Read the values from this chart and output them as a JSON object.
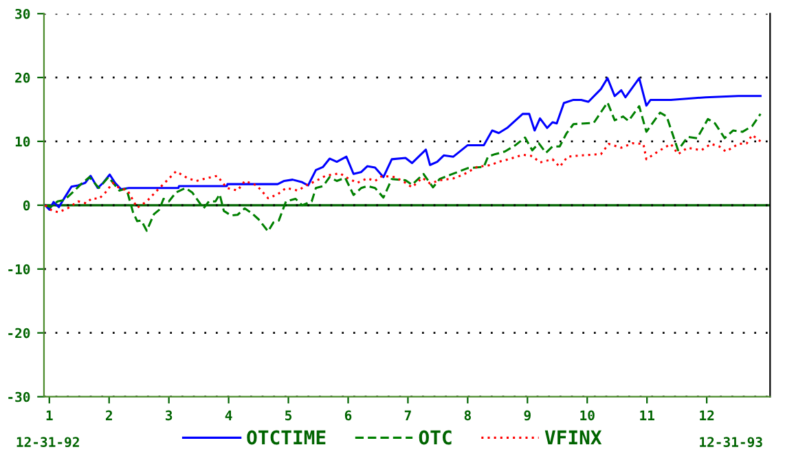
{
  "chart_data": {
    "type": "line",
    "xlim": [
      0.91,
      13.06
    ],
    "ylim": [
      -30,
      30
    ],
    "yticks": [
      {
        "value": -30,
        "label": "-30"
      },
      {
        "value": -20,
        "label": "-20"
      },
      {
        "value": -10,
        "label": "-10"
      },
      0,
      10,
      20,
      30
    ],
    "xticks": [
      1,
      2,
      3,
      4,
      5,
      6,
      7,
      8,
      9,
      10,
      11,
      12
    ],
    "grid": "y",
    "legend": "bottom",
    "ref_lines": [
      {
        "axis": "y",
        "value": 0,
        "color": "#006400",
        "line_style": "solid"
      }
    ],
    "annotations": [
      "12-31-92",
      "12-31-93"
    ],
    "series": [
      {
        "name": "OTCTIME",
        "color": "#0000ff",
        "line_style": "solid",
        "x": [
          0.93,
          1.0,
          1.07,
          1.16,
          1.23,
          1.37,
          1.48,
          1.6,
          1.69,
          1.81,
          1.9,
          2.01,
          2.1,
          2.2,
          2.33,
          3.16,
          3.17,
          3.97,
          3.98,
          4.82,
          4.93,
          5.07,
          5.23,
          5.33,
          5.46,
          5.58,
          5.69,
          5.81,
          5.97,
          6.09,
          6.22,
          6.32,
          6.45,
          6.59,
          6.73,
          6.96,
          7.07,
          7.3,
          7.37,
          7.49,
          7.6,
          7.76,
          8.0,
          8.27,
          8.41,
          8.52,
          8.66,
          8.92,
          9.03,
          9.12,
          9.21,
          9.33,
          9.42,
          9.49,
          9.61,
          9.77,
          9.9,
          10.02,
          10.23,
          10.34,
          10.46,
          10.57,
          10.64,
          10.87,
          10.99,
          11.06,
          11.4,
          11.98,
          12.53,
          12.9
        ],
        "values": [
          0,
          -0.7,
          0.5,
          -0.3,
          0.8,
          2.9,
          3.1,
          3.5,
          4.6,
          2.7,
          3.5,
          4.8,
          3.5,
          2.5,
          2.7,
          2.7,
          3.0,
          3.0,
          3.3,
          3.3,
          3.8,
          4.0,
          3.6,
          3.1,
          5.5,
          6.0,
          7.3,
          6.8,
          7.6,
          4.9,
          5.2,
          6.1,
          5.9,
          4.4,
          7.2,
          7.4,
          6.6,
          8.7,
          6.3,
          6.8,
          7.8,
          7.6,
          9.4,
          9.4,
          11.7,
          11.3,
          12.1,
          14.3,
          14.3,
          11.7,
          13.6,
          12.1,
          13.0,
          12.8,
          16.0,
          16.5,
          16.5,
          16.2,
          18.2,
          19.9,
          17.1,
          18.0,
          16.9,
          19.9,
          15.6,
          16.5,
          16.5,
          16.9,
          17.1,
          17.1
        ]
      },
      {
        "name": "OTC",
        "color": "#008000",
        "line_style": "dashed",
        "x": [
          0.93,
          1.02,
          1.14,
          1.25,
          1.39,
          1.53,
          1.67,
          1.83,
          1.99,
          2.17,
          2.29,
          2.4,
          2.47,
          2.54,
          2.63,
          2.75,
          2.84,
          2.91,
          3.0,
          3.12,
          3.28,
          3.39,
          3.58,
          3.67,
          3.78,
          3.85,
          3.92,
          4.04,
          4.15,
          4.27,
          4.38,
          4.5,
          4.66,
          4.75,
          4.84,
          4.96,
          5.12,
          5.23,
          5.39,
          5.46,
          5.58,
          5.69,
          5.81,
          5.95,
          6.09,
          6.22,
          6.32,
          6.45,
          6.59,
          6.73,
          6.96,
          7.07,
          7.26,
          7.42,
          7.53,
          7.72,
          8.0,
          8.27,
          8.34,
          8.46,
          8.62,
          8.8,
          8.96,
          9.08,
          9.19,
          9.31,
          9.42,
          9.54,
          9.65,
          9.77,
          10.11,
          10.34,
          10.46,
          10.6,
          10.69,
          10.87,
          10.99,
          11.22,
          11.33,
          11.52,
          11.68,
          11.84,
          12.02,
          12.14,
          12.3,
          12.44,
          12.6,
          12.76,
          12.9
        ],
        "values": [
          0,
          -0.3,
          0.6,
          0.8,
          2.0,
          3.3,
          4.4,
          2.7,
          4.4,
          2.3,
          2.6,
          -1.1,
          -2.5,
          -2.4,
          -4.0,
          -1.4,
          -0.7,
          1.0,
          0.6,
          2.0,
          2.7,
          2.0,
          -0.5,
          0.6,
          0.6,
          1.7,
          -0.9,
          -1.6,
          -1.5,
          -0.5,
          -1.2,
          -2.2,
          -4.1,
          -2.7,
          -2.4,
          0.6,
          1.0,
          0,
          0.6,
          2.7,
          3.0,
          4.4,
          3.8,
          4.3,
          1.6,
          2.7,
          3.0,
          2.7,
          1.2,
          4.1,
          3.9,
          3.2,
          4.9,
          2.8,
          4.1,
          4.8,
          5.8,
          6.0,
          7.6,
          8.0,
          8.4,
          9.4,
          10.6,
          8.6,
          9.7,
          8.2,
          9.2,
          9.2,
          11.2,
          12.7,
          12.9,
          16.1,
          13.3,
          13.9,
          13.2,
          15.5,
          11.5,
          14.5,
          13.9,
          8.6,
          10.7,
          10.5,
          13.5,
          12.8,
          10.5,
          11.7,
          11.5,
          12.4,
          14.3
        ]
      },
      {
        "name": "VFINX",
        "color": "#ff0000",
        "line_style": "dotted",
        "x": [
          0.93,
          1.05,
          1.16,
          1.32,
          1.48,
          1.62,
          1.71,
          1.83,
          1.94,
          2.06,
          2.17,
          2.31,
          2.47,
          2.63,
          2.77,
          2.93,
          3.12,
          3.32,
          3.46,
          3.62,
          3.81,
          3.97,
          4.15,
          4.27,
          4.47,
          4.66,
          4.82,
          4.96,
          5.16,
          5.3,
          5.46,
          5.62,
          5.86,
          6.0,
          6.15,
          6.32,
          6.45,
          6.57,
          6.78,
          6.91,
          7.07,
          7.24,
          7.37,
          7.53,
          7.76,
          7.93,
          8.16,
          8.39,
          8.52,
          8.69,
          8.92,
          9.08,
          9.21,
          9.42,
          9.54,
          9.67,
          9.9,
          10.23,
          10.36,
          10.57,
          10.76,
          10.94,
          10.99,
          11.15,
          11.29,
          11.4,
          11.52,
          11.68,
          11.91,
          12.07,
          12.21,
          12.32,
          12.53,
          12.67,
          12.76,
          12.9
        ],
        "values": [
          0,
          -0.9,
          -1.1,
          -0.4,
          0.6,
          0.3,
          1.1,
          1.0,
          2.0,
          3.5,
          2.7,
          2.3,
          -0.4,
          0.6,
          2.0,
          3.5,
          5.3,
          4.2,
          3.8,
          4.2,
          4.6,
          2.7,
          2.3,
          3.8,
          3.1,
          1.1,
          1.7,
          2.7,
          2.3,
          3.1,
          3.8,
          4.6,
          5.0,
          4.2,
          3.5,
          4.2,
          3.8,
          4.6,
          4.4,
          3.8,
          2.8,
          4.3,
          3.4,
          3.9,
          4.2,
          4.8,
          6.0,
          6.3,
          6.8,
          7.2,
          7.9,
          7.7,
          6.7,
          7.2,
          6.0,
          7.6,
          7.8,
          8.0,
          9.6,
          9.0,
          9.7,
          9.6,
          7.2,
          8.2,
          9.0,
          9.6,
          8.0,
          9.0,
          8.6,
          9.6,
          9.2,
          8.4,
          9.6,
          9.7,
          11.0,
          10.0
        ]
      }
    ]
  }
}
